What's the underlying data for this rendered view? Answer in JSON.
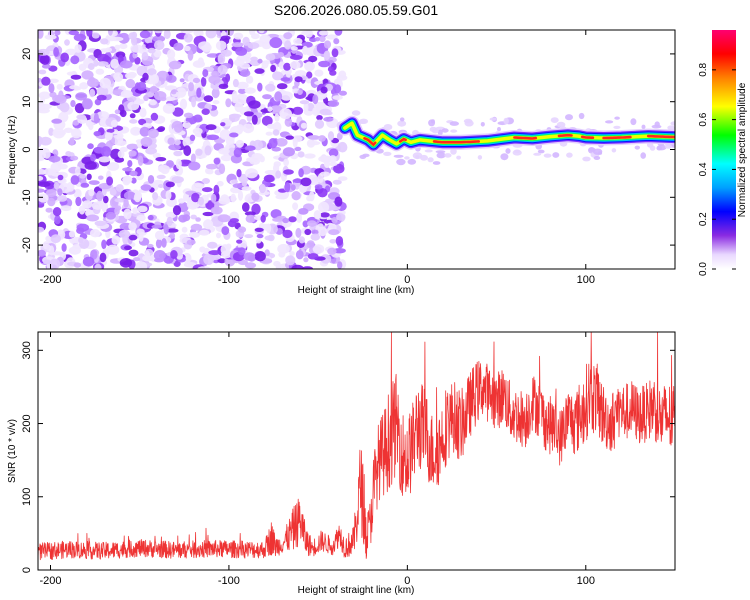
{
  "chart_data": [
    {
      "type": "heatmap",
      "title": "S206.2026.080.05.59.G01",
      "xlabel": "Height of straight line (km)",
      "ylabel": "Frequency (Hz)",
      "xlim": [
        -207,
        150
      ],
      "ylim": [
        -25,
        25
      ],
      "xticks": [
        -200,
        -100,
        0,
        100
      ],
      "xtick_labels": [
        "-200",
        "-100",
        "0",
        "100"
      ],
      "yticks": [
        -20,
        -10,
        0,
        10,
        20
      ],
      "ytick_labels": [
        "-20",
        "-10",
        "0",
        "10",
        "20"
      ],
      "noise_region_x": [
        -207,
        -36
      ],
      "signal_path": {
        "x": [
          -35,
          -31,
          -28,
          -25,
          -22,
          -19,
          -14,
          -10,
          -6,
          -2,
          2,
          7,
          12,
          20,
          30,
          45,
          60,
          70,
          80,
          90,
          96,
          100,
          110,
          120,
          135,
          150
        ],
        "y": [
          4.5,
          5.5,
          3.0,
          2.5,
          2.0,
          1.0,
          3.0,
          2.0,
          1.2,
          2.2,
          1.5,
          2.0,
          1.8,
          1.5,
          1.5,
          1.8,
          2.5,
          2.3,
          2.7,
          3.0,
          2.8,
          2.5,
          2.4,
          2.5,
          2.8,
          2.6
        ]
      },
      "colorbar": {
        "label": "Normalized spectral amplitude",
        "ticks": [
          0.0,
          0.2,
          0.4,
          0.6,
          0.8
        ],
        "tick_labels": [
          "0.0",
          "0.2",
          "0.4",
          "0.6",
          "0.8"
        ],
        "range": [
          0,
          0.96
        ]
      }
    },
    {
      "type": "line",
      "xlabel": "Height of straight line (km)",
      "ylabel": "SNR (10 * v/v)",
      "xlim": [
        -207,
        150
      ],
      "ylim": [
        0,
        325
      ],
      "xticks": [
        -200,
        -100,
        0,
        100
      ],
      "xtick_labels": [
        "-200",
        "-100",
        "0",
        "100"
      ],
      "yticks": [
        0,
        100,
        200,
        300
      ],
      "ytick_labels": [
        "0",
        "100",
        "200",
        "300"
      ],
      "series": [
        {
          "name": "SNR",
          "color": "#ee3333",
          "x": [
            -207,
            -190,
            -170,
            -150,
            -130,
            -110,
            -90,
            -80,
            -76,
            -74,
            -70,
            -64,
            -60,
            -57,
            -53,
            -48,
            -42,
            -38,
            -35,
            -30,
            -26,
            -23,
            -21,
            -19,
            -16,
            -13,
            -10,
            -6,
            -3,
            0,
            3,
            6,
            10,
            14,
            18,
            22,
            26,
            30,
            34,
            38,
            42,
            46,
            50,
            54,
            58,
            62,
            66,
            70,
            74,
            78,
            82,
            86,
            90,
            94,
            98,
            102,
            106,
            110,
            114,
            118,
            122,
            126,
            130,
            134,
            138,
            142,
            146,
            150
          ],
          "y": [
            25,
            28,
            26,
            30,
            27,
            29,
            28,
            28,
            45,
            32,
            35,
            55,
            70,
            40,
            30,
            40,
            32,
            50,
            30,
            40,
            120,
            45,
            60,
            110,
            150,
            160,
            180,
            200,
            160,
            150,
            170,
            200,
            190,
            160,
            170,
            200,
            210,
            195,
            220,
            240,
            250,
            240,
            230,
            240,
            215,
            210,
            205,
            230,
            220,
            200,
            195,
            180,
            210,
            200,
            215,
            240,
            235,
            210,
            200,
            220,
            215,
            220,
            210,
            215,
            225,
            205,
            210,
            200
          ],
          "amplitude": [
            12,
            12,
            12,
            12,
            12,
            12,
            12,
            12,
            25,
            15,
            12,
            30,
            35,
            20,
            12,
            15,
            12,
            18,
            15,
            20,
            70,
            30,
            35,
            50,
            55,
            60,
            70,
            70,
            60,
            60,
            60,
            65,
            60,
            55,
            55,
            55,
            50,
            50,
            45,
            45,
            40,
            40,
            40,
            40,
            40,
            40,
            40,
            40,
            40,
            40,
            40,
            40,
            40,
            45,
            50,
            55,
            50,
            45,
            40,
            40,
            40,
            40,
            40,
            40,
            45,
            45,
            50,
            50
          ]
        }
      ]
    }
  ]
}
